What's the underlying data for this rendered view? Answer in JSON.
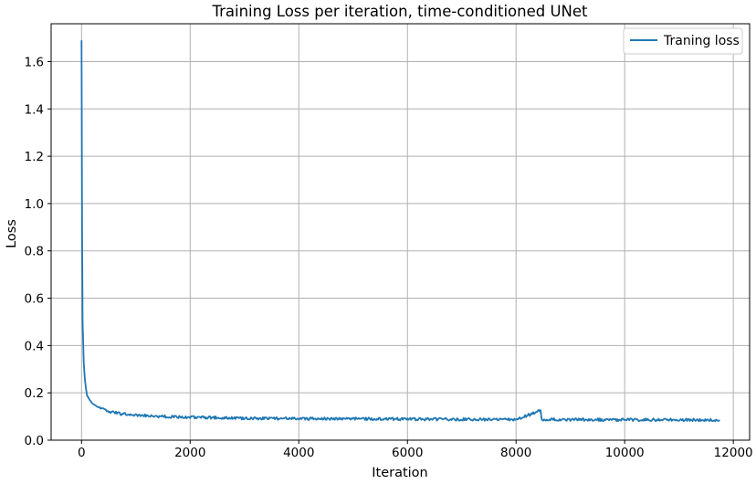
{
  "chart_data": {
    "type": "line",
    "title": "Training Loss per iteration, time-conditioned UNet",
    "xlabel": "Iteration",
    "ylabel": "Loss",
    "xlim": [
      -560,
      12300
    ],
    "ylim": [
      0,
      1.76
    ],
    "x_ticks": [
      0,
      2000,
      4000,
      6000,
      8000,
      10000,
      12000
    ],
    "y_ticks": [
      0.0,
      0.2,
      0.4,
      0.6,
      0.8,
      1.0,
      1.2,
      1.4,
      1.6
    ],
    "grid": true,
    "legend_position": "top-right",
    "series": [
      {
        "name": "Traning loss",
        "color": "#1f77b4",
        "x": [
          0,
          10,
          20,
          40,
          60,
          80,
          100,
          150,
          200,
          300,
          400,
          500,
          700,
          1000,
          1500,
          2000,
          2500,
          3000,
          4000,
          5000,
          6000,
          7000,
          8000,
          8450,
          8470,
          8500,
          9000,
          10000,
          11000,
          11750
        ],
        "y": [
          1.69,
          0.9,
          0.5,
          0.33,
          0.26,
          0.22,
          0.19,
          0.17,
          0.155,
          0.14,
          0.13,
          0.12,
          0.112,
          0.105,
          0.1,
          0.097,
          0.095,
          0.093,
          0.091,
          0.09,
          0.089,
          0.088,
          0.087,
          0.125,
          0.09,
          0.088,
          0.087,
          0.086,
          0.086,
          0.085
        ]
      }
    ]
  }
}
